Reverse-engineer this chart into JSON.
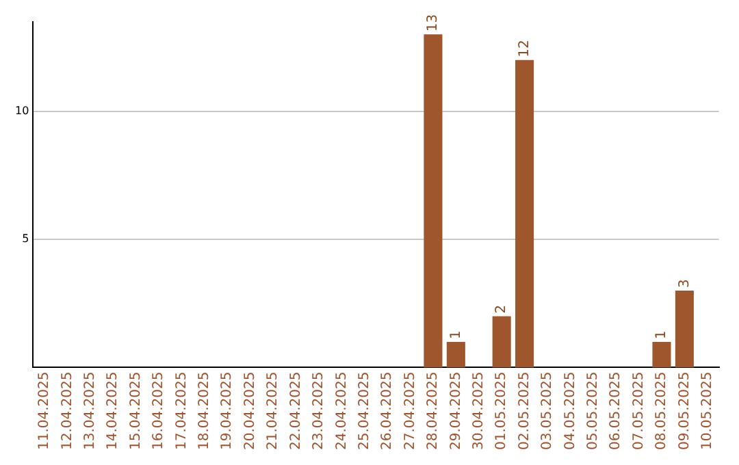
{
  "chart_data": {
    "type": "bar",
    "categories": [
      "11.04.2025",
      "12.04.2025",
      "13.04.2025",
      "14.04.2025",
      "15.04.2025",
      "16.04.2025",
      "17.04.2025",
      "18.04.2025",
      "19.04.2025",
      "20.04.2025",
      "21.04.2025",
      "22.04.2025",
      "23.04.2025",
      "24.04.2025",
      "25.04.2025",
      "26.04.2025",
      "27.04.2025",
      "28.04.2025",
      "29.04.2025",
      "30.04.2025",
      "01.05.2025",
      "02.05.2025",
      "03.05.2025",
      "04.05.2025",
      "05.05.2025",
      "06.05.2025",
      "07.05.2025",
      "08.05.2025",
      "09.05.2025",
      "10.05.2025"
    ],
    "values": [
      0,
      0,
      0,
      0,
      0,
      0,
      0,
      0,
      0,
      0,
      0,
      0,
      0,
      0,
      0,
      0,
      0,
      13,
      1,
      0,
      2,
      12,
      0,
      0,
      0,
      0,
      0,
      1,
      3,
      0
    ],
    "value_labels": [
      null,
      null,
      null,
      null,
      null,
      null,
      null,
      null,
      null,
      null,
      null,
      null,
      null,
      null,
      null,
      null,
      null,
      "13",
      "1",
      null,
      "2",
      "12",
      null,
      null,
      null,
      null,
      null,
      "1",
      "3",
      null
    ],
    "color": "#a0562c",
    "ylim": [
      0,
      13.5
    ],
    "yticks": [
      5,
      10
    ],
    "grid": "y",
    "legend": false
  }
}
